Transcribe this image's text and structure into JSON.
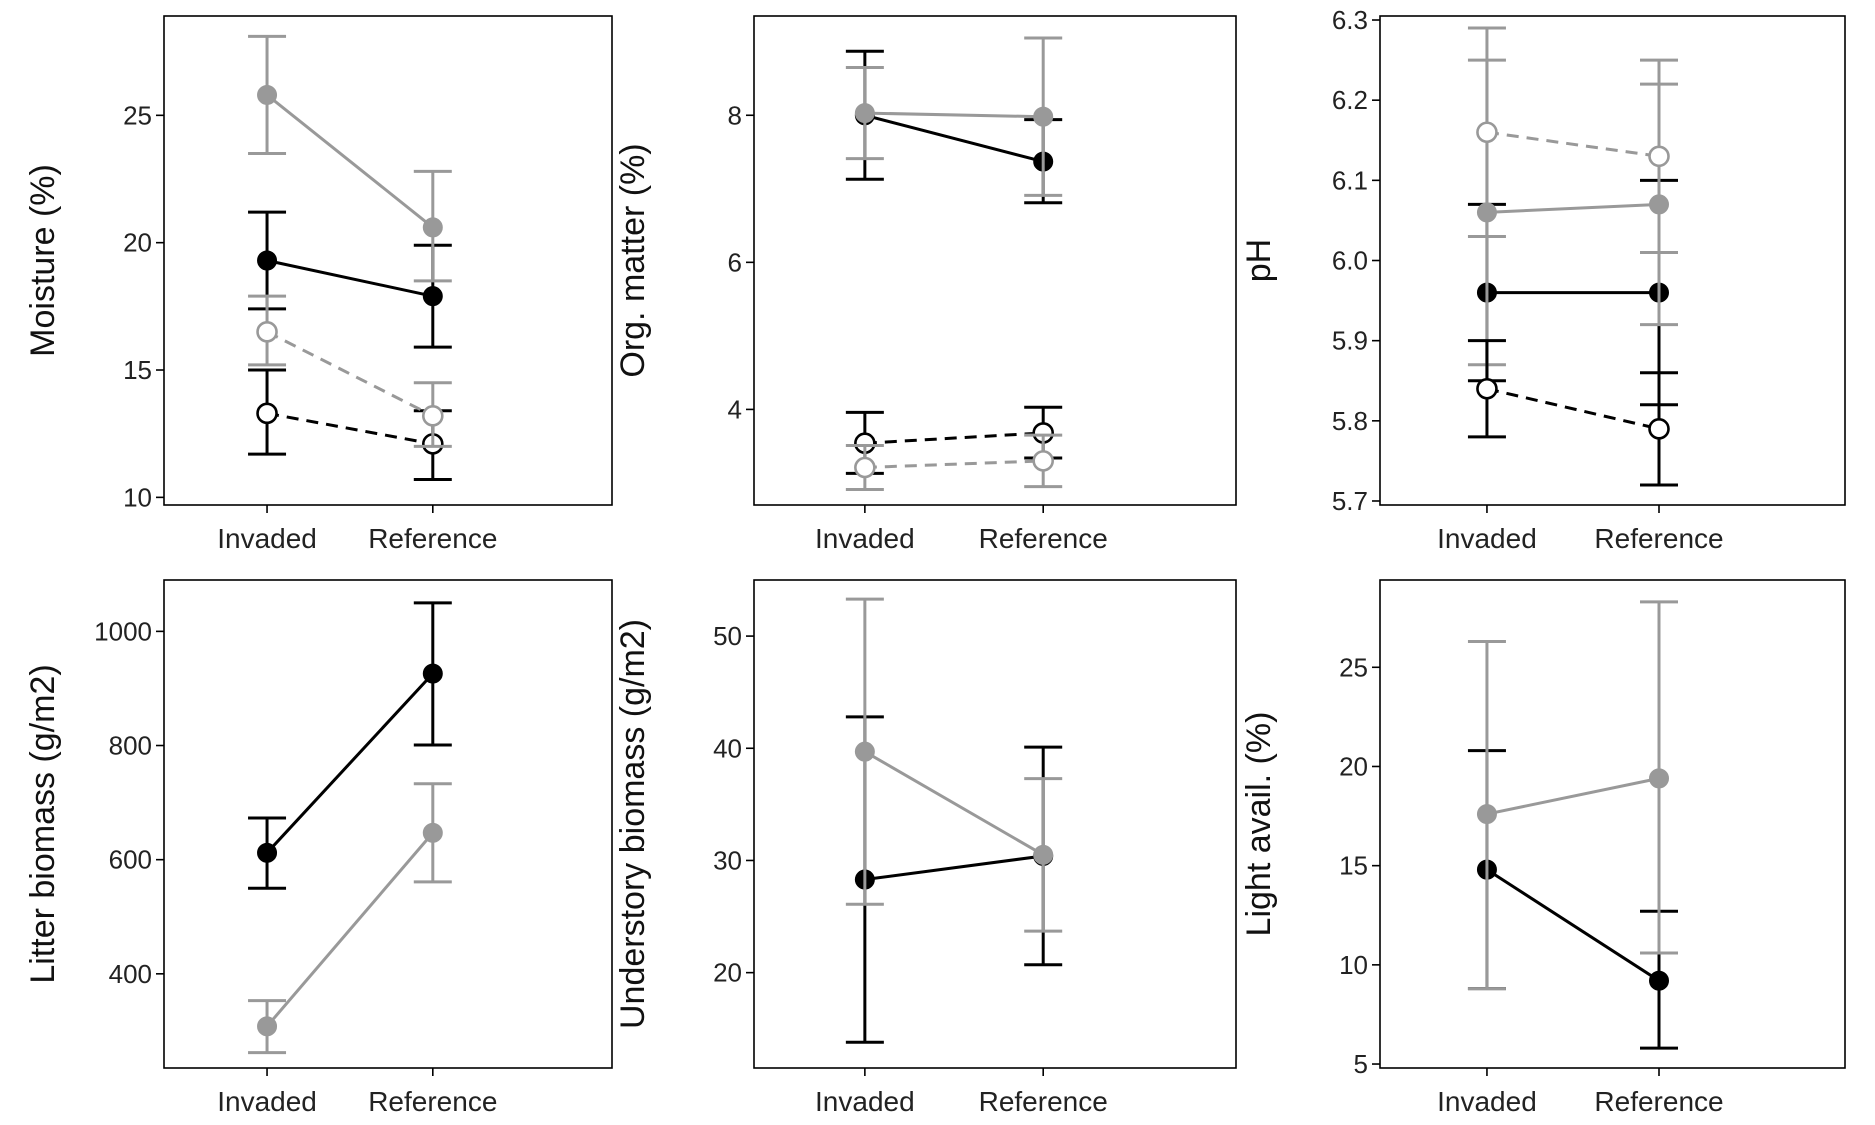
{
  "colors": {
    "black_series": "#000000",
    "gray_series": "#999999",
    "axis": "#000000",
    "background": "#ffffff"
  },
  "chart_data": [
    {
      "type": "line",
      "ylabel": "Moisture (%)",
      "categories": [
        "Invaded",
        "Reference"
      ],
      "ylim": [
        9.7,
        28.9
      ],
      "yticks": [
        10,
        15,
        20,
        25
      ],
      "series": [
        {
          "name": "black-filled",
          "color": "#000000",
          "marker": "filled",
          "dash": false,
          "values": [
            19.3,
            17.9
          ],
          "errors": [
            [
              17.4,
              21.2
            ],
            [
              15.9,
              19.9
            ]
          ]
        },
        {
          "name": "gray-filled",
          "color": "#999999",
          "marker": "filled",
          "dash": false,
          "values": [
            25.8,
            20.6
          ],
          "errors": [
            [
              23.5,
              28.1
            ],
            [
              18.5,
              22.8
            ]
          ]
        },
        {
          "name": "black-open",
          "color": "#000000",
          "marker": "open",
          "dash": true,
          "values": [
            13.3,
            12.1
          ],
          "errors": [
            [
              11.7,
              15.0
            ],
            [
              10.7,
              13.4
            ]
          ]
        },
        {
          "name": "gray-open",
          "color": "#999999",
          "marker": "open",
          "dash": true,
          "values": [
            16.5,
            13.2
          ],
          "errors": [
            [
              15.2,
              17.9
            ],
            [
              12.0,
              14.5
            ]
          ]
        }
      ]
    },
    {
      "type": "line",
      "ylabel": "Org. matter (%)",
      "categories": [
        "Invaded",
        "Reference"
      ],
      "ylim": [
        2.7,
        9.35
      ],
      "yticks": [
        4,
        6,
        8
      ],
      "series": [
        {
          "name": "black-filled",
          "color": "#000000",
          "marker": "filled",
          "dash": false,
          "values": [
            8.0,
            7.37
          ],
          "errors": [
            [
              7.13,
              8.87
            ],
            [
              6.81,
              7.94
            ]
          ]
        },
        {
          "name": "gray-filled",
          "color": "#999999",
          "marker": "filled",
          "dash": false,
          "values": [
            8.03,
            7.98
          ],
          "errors": [
            [
              7.41,
              8.65
            ],
            [
              6.91,
              9.05
            ]
          ]
        },
        {
          "name": "black-open",
          "color": "#000000",
          "marker": "open",
          "dash": true,
          "values": [
            3.54,
            3.68
          ],
          "errors": [
            [
              3.13,
              3.96
            ],
            [
              3.34,
              4.03
            ]
          ]
        },
        {
          "name": "gray-open",
          "color": "#999999",
          "marker": "open",
          "dash": true,
          "values": [
            3.21,
            3.3
          ],
          "errors": [
            [
              2.91,
              3.51
            ],
            [
              2.95,
              3.65
            ]
          ]
        }
      ]
    },
    {
      "type": "line",
      "ylabel": "pH",
      "categories": [
        "Invaded",
        "Reference"
      ],
      "ylim": [
        5.695,
        6.305
      ],
      "yticks": [
        5.7,
        5.8,
        5.9,
        6.0,
        6.1,
        6.2,
        6.3
      ],
      "series": [
        {
          "name": "black-filled",
          "color": "#000000",
          "marker": "filled",
          "dash": false,
          "values": [
            5.96,
            5.96
          ],
          "errors": [
            [
              5.85,
              6.07
            ],
            [
              5.82,
              6.1
            ]
          ]
        },
        {
          "name": "gray-filled",
          "color": "#999999",
          "marker": "filled",
          "dash": false,
          "values": [
            6.06,
            6.07
          ],
          "errors": [
            [
              5.87,
              6.25
            ],
            [
              5.92,
              6.22
            ]
          ]
        },
        {
          "name": "black-open",
          "color": "#000000",
          "marker": "open",
          "dash": true,
          "values": [
            5.84,
            5.79
          ],
          "errors": [
            [
              5.78,
              5.9
            ],
            [
              5.72,
              5.86
            ]
          ]
        },
        {
          "name": "gray-open",
          "color": "#999999",
          "marker": "open",
          "dash": true,
          "values": [
            6.16,
            6.13
          ],
          "errors": [
            [
              6.03,
              6.29
            ],
            [
              6.01,
              6.25
            ]
          ]
        }
      ]
    },
    {
      "type": "line",
      "ylabel": "Litter biomass (g/m2)",
      "categories": [
        "Invaded",
        "Reference"
      ],
      "ylim": [
        235,
        1090
      ],
      "yticks": [
        400,
        600,
        800,
        1000
      ],
      "series": [
        {
          "name": "black-filled",
          "color": "#000000",
          "marker": "filled",
          "dash": false,
          "values": [
            612,
            926
          ],
          "errors": [
            [
              550,
              673
            ],
            [
              801,
              1050
            ]
          ]
        },
        {
          "name": "gray-filled",
          "color": "#999999",
          "marker": "filled",
          "dash": false,
          "values": [
            308,
            647
          ],
          "errors": [
            [
              262,
              353
            ],
            [
              561,
              733
            ]
          ]
        }
      ]
    },
    {
      "type": "line",
      "ylabel": "Understory biomass (g/m2)",
      "categories": [
        "Invaded",
        "Reference"
      ],
      "ylim": [
        11.5,
        55.0
      ],
      "yticks": [
        20,
        30,
        40,
        50
      ],
      "series": [
        {
          "name": "black-filled",
          "color": "#000000",
          "marker": "filled",
          "dash": false,
          "values": [
            28.3,
            30.4
          ],
          "errors": [
            [
              13.8,
              42.8
            ],
            [
              20.7,
              40.1
            ]
          ]
        },
        {
          "name": "gray-filled",
          "color": "#999999",
          "marker": "filled",
          "dash": false,
          "values": [
            39.7,
            30.5
          ],
          "errors": [
            [
              26.1,
              53.3
            ],
            [
              23.7,
              37.3
            ]
          ]
        }
      ]
    },
    {
      "type": "line",
      "ylabel": "Light avail. (%)",
      "categories": [
        "Invaded",
        "Reference"
      ],
      "ylim": [
        4.8,
        29.4
      ],
      "yticks": [
        5,
        10,
        15,
        20,
        25
      ],
      "series": [
        {
          "name": "black-filled",
          "color": "#000000",
          "marker": "filled",
          "dash": false,
          "values": [
            14.8,
            9.2
          ],
          "errors": [
            [
              8.8,
              20.8
            ],
            [
              5.8,
              12.7
            ]
          ]
        },
        {
          "name": "gray-filled",
          "color": "#999999",
          "marker": "filled",
          "dash": false,
          "values": [
            17.6,
            19.4
          ],
          "errors": [
            [
              8.8,
              26.3
            ],
            [
              10.6,
              28.3
            ]
          ]
        }
      ]
    }
  ]
}
